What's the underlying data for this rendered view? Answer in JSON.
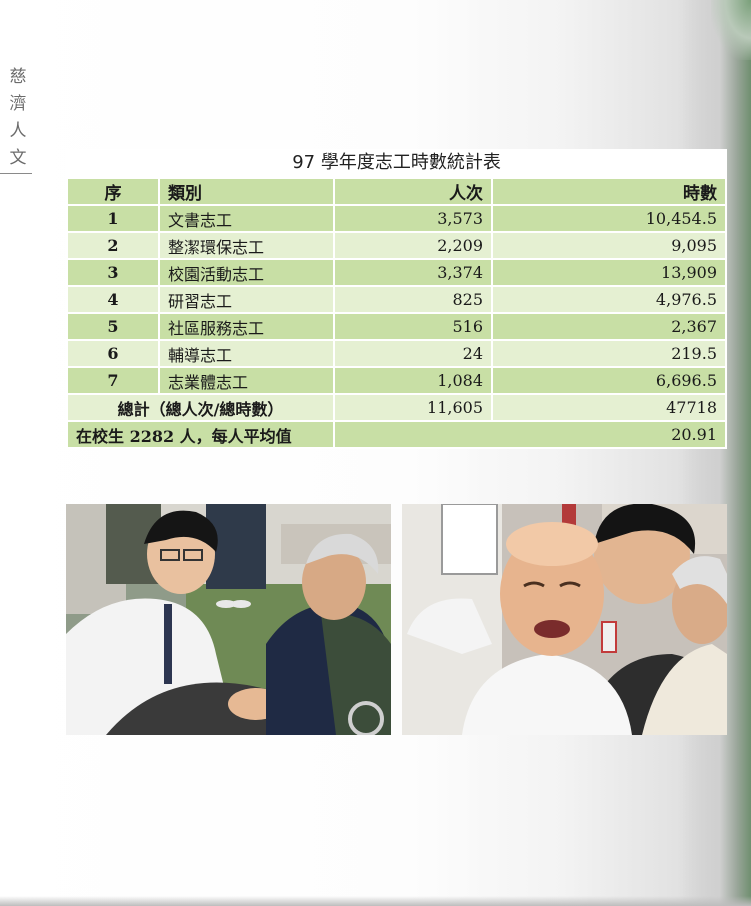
{
  "side_header": [
    "慈",
    "濟",
    "人",
    "文"
  ],
  "table": {
    "title": "97 學年度志工時數統計表",
    "headers": [
      "序",
      "類別",
      "人次",
      "時數"
    ],
    "rows": [
      {
        "seq": "1",
        "category": "文書志工",
        "count": "3,573",
        "hours": "10,454.5"
      },
      {
        "seq": "2",
        "category": "整潔環保志工",
        "count": "2,209",
        "hours": "9,095"
      },
      {
        "seq": "3",
        "category": "校園活動志工",
        "count": "3,374",
        "hours": "13,909"
      },
      {
        "seq": "4",
        "category": "研習志工",
        "count": "825",
        "hours": "4,976.5"
      },
      {
        "seq": "5",
        "category": "社區服務志工",
        "count": "516",
        "hours": "2,367"
      },
      {
        "seq": "6",
        "category": "輔導志工",
        "count": "24",
        "hours": "219.5"
      },
      {
        "seq": "7",
        "category": "志業體志工",
        "count": "1,084",
        "hours": "6,696.5"
      }
    ],
    "total": {
      "label": "總計（總人次/總時數）",
      "count": "11,605",
      "hours": "47718"
    },
    "average": {
      "label": "在校生 2282 人，每人平均值",
      "value": "20.91"
    }
  },
  "colors": {
    "header_green": "#c8dfa5",
    "row_light": "#e5f0d2",
    "row_dark": "#c8dfa5"
  }
}
